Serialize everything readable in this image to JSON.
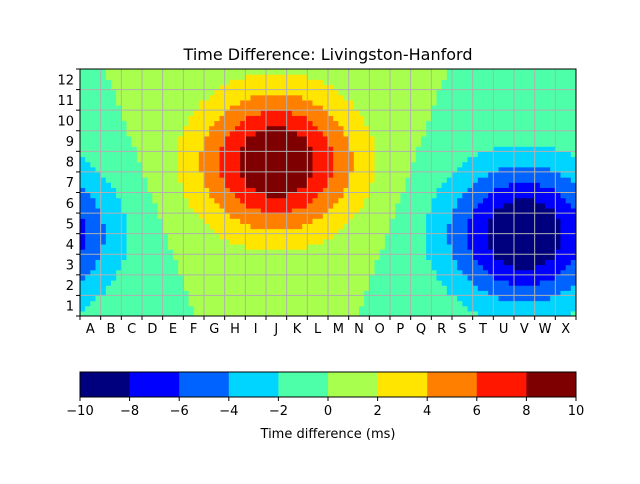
{
  "chart_data": {
    "type": "heatmap",
    "title": "Time Difference: Livingston-Hanford",
    "x_tick_labels": [
      "A",
      "B",
      "C",
      "D",
      "E",
      "F",
      "G",
      "H",
      "I",
      "J",
      "K",
      "L",
      "M",
      "N",
      "O",
      "P",
      "Q",
      "R",
      "S",
      "T",
      "U",
      "V",
      "W",
      "X"
    ],
    "y_tick_labels": [
      "1",
      "2",
      "3",
      "4",
      "5",
      "6",
      "7",
      "8",
      "9",
      "10",
      "11",
      "12"
    ],
    "grid": true,
    "grid_color": "#b0b0b0",
    "colorbar": {
      "label": "Time difference (ms)",
      "orientation": "horizontal",
      "placement": "bottom",
      "range": [
        -10,
        10
      ],
      "tick_labels": [
        "−10",
        "−8",
        "−6",
        "−4",
        "−2",
        "0",
        "2",
        "4",
        "6",
        "8",
        "10"
      ],
      "levels": [
        -10,
        -8,
        -6,
        -4,
        -2,
        0,
        2,
        4,
        6,
        8,
        10
      ],
      "colors": [
        "#00007f",
        "#0000ff",
        "#0063ff",
        "#00d5ff",
        "#4effa9",
        "#a9ff4e",
        "#ffe500",
        "#ff7f00",
        "#ff1700",
        "#7f0000"
      ]
    },
    "extrema": {
      "max": {
        "value_ms": 9.5,
        "x": "J",
        "y": 8
      },
      "min": {
        "value_ms": -9.5,
        "x": "V",
        "y": 4.5
      }
    }
  }
}
